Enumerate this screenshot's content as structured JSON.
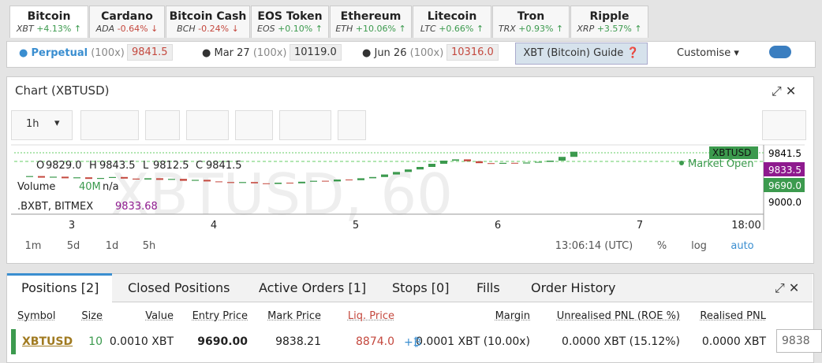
{
  "tabs": [
    {
      "name": "Bitcoin",
      "code": "XBT",
      "change": "+4.13%",
      "direction": "up"
    },
    {
      "name": "Cardano",
      "code": "ADA",
      "change": "-0.64%",
      "direction": "down"
    },
    {
      "name": "Bitcoin Cash",
      "code": "BCH",
      "change": "-0.24%",
      "direction": "down"
    },
    {
      "name": "EOS Token",
      "code": "EOS",
      "change": "+0.10%",
      "direction": "up"
    },
    {
      "name": "Ethereum",
      "code": "ETH",
      "change": "+10.06%",
      "direction": "up"
    },
    {
      "name": "Litecoin",
      "code": "LTC",
      "change": "+0.66%",
      "direction": "up"
    },
    {
      "name": "Tron",
      "code": "TRX",
      "change": "+0.93%",
      "direction": "up"
    },
    {
      "name": "Ripple",
      "code": "XRP",
      "change": "+3.57%",
      "direction": "up"
    }
  ],
  "contracts": [
    {
      "name": "Perpetual",
      "leverage": "(100x)",
      "price": "9841.5"
    },
    {
      "name": "Mar 27",
      "leverage": "(100x)",
      "price": "10119.0"
    },
    {
      "name": "Jun 26",
      "leverage": "(100x)",
      "price": "10316.0"
    }
  ],
  "guide": "XBT (Bitcoin) Guide",
  "customise": "Customise",
  "chart": {
    "title": "Chart (XBTUSD)",
    "interval": "1h",
    "watermark": "XBTUSD, 60",
    "ohlc": {
      "o_label": "O",
      "o": "9829.0",
      "h_label": "H",
      "h": "9843.5",
      "l_label": "L",
      "l": "9812.5",
      "c_label": "C",
      "c": "9841.5"
    },
    "volume": {
      "label": "Volume",
      "value": "40M",
      "na": "n/a"
    },
    "index": {
      "label": ".BXBT, BITMEX",
      "value": "9833.68"
    },
    "market_open": "Market Open",
    "price_labels": {
      "symbol": "XBTUSD",
      "last": "9841.5",
      "mark": "9833.5",
      "entry": "9690.0",
      "tick": "9000.0"
    },
    "time_labels": [
      "3",
      "4",
      "5",
      "6",
      "7",
      "18:00"
    ],
    "ranges": [
      "1m",
      "5d",
      "1d",
      "5h"
    ],
    "time": "13:06:14 (UTC)",
    "percent": "%",
    "log": "log",
    "auto": "auto",
    "ylim": [
      8900,
      9900
    ],
    "closes": [
      9440,
      9455,
      9430,
      9445,
      9420,
      9435,
      9410,
      9425,
      9440,
      9415,
      9400,
      9420,
      9395,
      9410,
      9380,
      9395,
      9370,
      9360,
      9345,
      9360,
      9340,
      9330,
      9350,
      9340,
      9365,
      9380,
      9370,
      9400,
      9390,
      9420,
      9440,
      9480,
      9520,
      9560,
      9600,
      9650,
      9700,
      9720,
      9690,
      9660,
      9650,
      9665,
      9655,
      9670,
      9680,
      9700,
      9760,
      9841.5
    ]
  },
  "positions": {
    "tabs": [
      "Positions [2]",
      "Closed Positions",
      "Active Orders [1]",
      "Stops [0]",
      "Fills",
      "Order History"
    ],
    "headers": [
      "Symbol",
      "Size",
      "Value",
      "Entry Price",
      "Mark Price",
      "Liq. Price",
      "Margin",
      "Unrealised PNL (ROE %)",
      "Realised PNL"
    ],
    "row": [
      "XBTUSD",
      "10",
      "0.0010 XBT",
      "9690.00",
      "9838.21",
      "8874.0",
      "0.0001 XBT (10.00x)",
      "0.0000 XBT (15.12%)",
      "0.0000 XBT"
    ],
    "input": "9838"
  }
}
